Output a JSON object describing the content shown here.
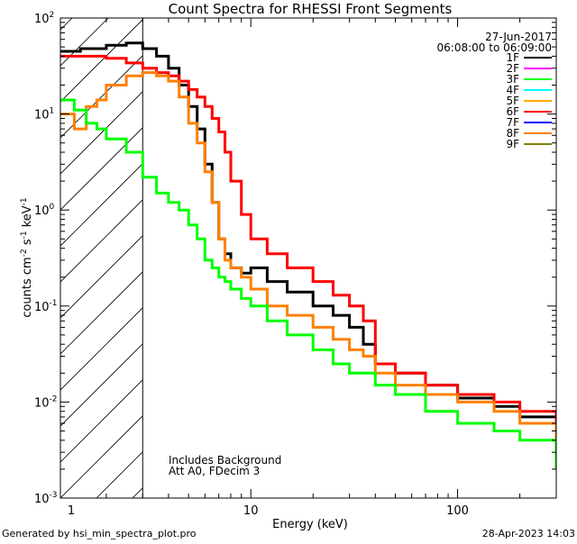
{
  "chart_data": {
    "type": "line",
    "title": "Count Spectra for RHESSI Front Segments",
    "xlabel": "Energy (keV)",
    "ylabel_parts": [
      "counts cm",
      "-2",
      " s",
      "-1",
      " keV",
      "-1"
    ],
    "xscale": "log",
    "yscale": "log",
    "xlim": [
      1.2,
      300
    ],
    "ylim": [
      0.001,
      100
    ],
    "x_ticks": [
      {
        "value": 10,
        "label": "10"
      },
      {
        "value": 100,
        "label": "100"
      }
    ],
    "x_edge_label": {
      "value": 1.2,
      "label": "1"
    },
    "y_ticks": [
      {
        "value": 0.001,
        "base": "10",
        "exp": "-3"
      },
      {
        "value": 0.01,
        "base": "10",
        "exp": "-2"
      },
      {
        "value": 0.1,
        "base": "10",
        "exp": "-1"
      },
      {
        "value": 1,
        "base": "10",
        "exp": "0"
      },
      {
        "value": 10,
        "base": "10",
        "exp": "1"
      },
      {
        "value": 100,
        "base": "10",
        "exp": "2"
      }
    ],
    "date": "27-Jun-2017",
    "time_range": "06:08:00 to 06:09:00",
    "attenuator_cutoff_kev": 3.0,
    "notes": [
      "Includes Background",
      "Att A0, FDecim 3"
    ],
    "legend": [
      {
        "label": "1F",
        "color": "#000000"
      },
      {
        "label": "2F",
        "color": "#ff00ff"
      },
      {
        "label": "3F",
        "color": "#00ff00"
      },
      {
        "label": "4F",
        "color": "#00ffff"
      },
      {
        "label": "5F",
        "color": "#ffaa00"
      },
      {
        "label": "6F",
        "color": "#ff0000"
      },
      {
        "label": "7F",
        "color": "#0000ff"
      },
      {
        "label": "8F",
        "color": "#ff8000"
      },
      {
        "label": "9F",
        "color": "#808000"
      }
    ],
    "series": [
      {
        "name": "1F",
        "color": "#000000",
        "x": [
          1.2,
          1.5,
          2,
          2.5,
          3,
          3.5,
          4,
          4.5,
          5,
          5.5,
          6,
          6.5,
          7,
          7.5,
          8,
          9,
          10,
          12,
          15,
          20,
          25,
          30,
          35,
          40,
          50,
          70,
          100,
          150,
          200,
          300
        ],
        "y": [
          45,
          48,
          52,
          55,
          48,
          40,
          30,
          20,
          12,
          7,
          3.0,
          1.2,
          0.5,
          0.35,
          0.25,
          0.22,
          0.25,
          0.18,
          0.14,
          0.1,
          0.08,
          0.06,
          0.04,
          0.025,
          0.02,
          0.015,
          0.011,
          0.009,
          0.007,
          0.004
        ]
      },
      {
        "name": "6F",
        "color": "#ff0000",
        "x": [
          1.2,
          1.5,
          2,
          2.5,
          3,
          3.5,
          4,
          4.5,
          5,
          5.5,
          6,
          6.5,
          7,
          7.5,
          8,
          9,
          10,
          12,
          15,
          20,
          25,
          30,
          35,
          40,
          50,
          70,
          100,
          150,
          200,
          300
        ],
        "y": [
          40,
          40,
          38,
          34,
          30,
          27,
          25,
          22,
          18,
          15,
          12,
          9,
          6.5,
          4,
          2,
          0.9,
          0.5,
          0.35,
          0.25,
          0.18,
          0.13,
          0.1,
          0.07,
          0.025,
          0.02,
          0.015,
          0.012,
          0.01,
          0.008,
          0.005
        ]
      },
      {
        "name": "8F",
        "color": "#ff8000",
        "x": [
          1.2,
          1.4,
          1.6,
          1.8,
          2,
          2.5,
          3,
          3.5,
          4,
          4.5,
          5,
          5.5,
          6,
          6.5,
          7,
          7.5,
          8,
          9,
          10,
          12,
          15,
          20,
          25,
          30,
          35,
          40,
          50,
          70,
          100,
          150,
          200,
          300
        ],
        "y": [
          10,
          7,
          12,
          14,
          20,
          25,
          27,
          25,
          22,
          15,
          8,
          5,
          2.5,
          1.2,
          0.5,
          0.3,
          0.25,
          0.2,
          0.15,
          0.1,
          0.08,
          0.06,
          0.045,
          0.035,
          0.03,
          0.02,
          0.015,
          0.012,
          0.01,
          0.008,
          0.006,
          0.0035
        ]
      },
      {
        "name": "3F",
        "color": "#00ff00",
        "x": [
          1.2,
          1.4,
          1.6,
          1.8,
          2,
          2.5,
          3,
          3.5,
          4,
          4.5,
          5,
          5.5,
          6,
          6.5,
          7,
          7.5,
          8,
          9,
          10,
          12,
          15,
          20,
          25,
          30,
          35,
          40,
          50,
          70,
          100,
          150,
          200,
          300
        ],
        "y": [
          14,
          11,
          8,
          7,
          5.5,
          4,
          2.2,
          1.5,
          1.2,
          1.0,
          0.7,
          0.5,
          0.3,
          0.25,
          0.2,
          0.18,
          0.15,
          0.12,
          0.1,
          0.07,
          0.05,
          0.035,
          0.025,
          0.02,
          0.02,
          0.015,
          0.012,
          0.008,
          0.006,
          0.005,
          0.004,
          0.002
        ]
      }
    ]
  },
  "footer": {
    "generated_by": "Generated by hsi_min_spectra_plot.pro",
    "timestamp": "28-Apr-2023 14:03"
  }
}
